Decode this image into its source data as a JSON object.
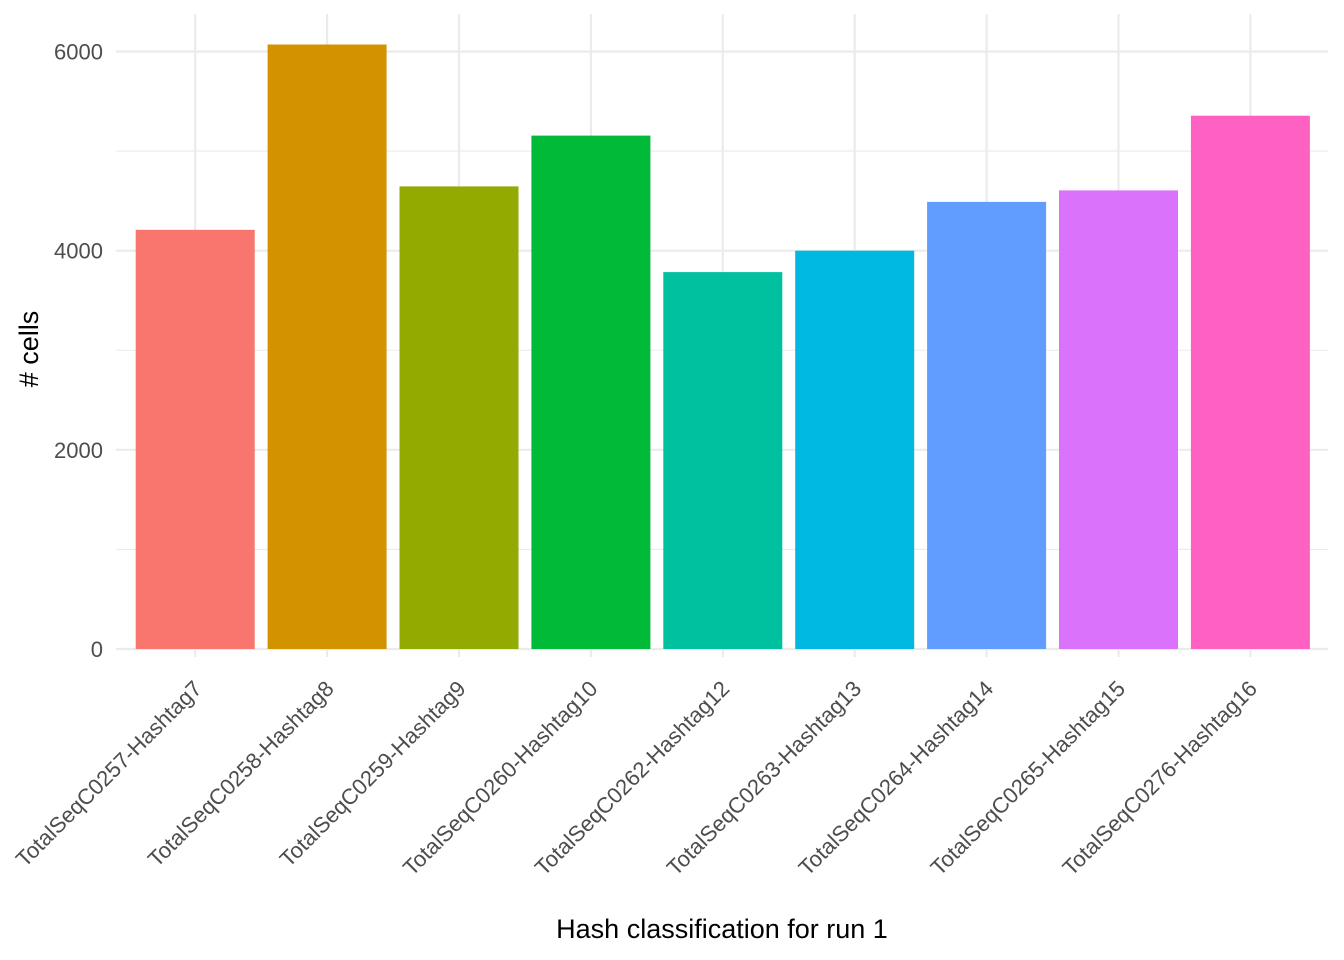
{
  "chart_data": {
    "type": "bar",
    "xlabel": "Hash classification for run 1",
    "ylabel": "# cells",
    "categories": [
      "TotalSeqC0257-Hashtag7",
      "TotalSeqC0258-Hashtag8",
      "TotalSeqC0259-Hashtag9",
      "TotalSeqC0260-Hashtag10",
      "TotalSeqC0262-Hashtag12",
      "TotalSeqC0263-Hashtag13",
      "TotalSeqC0264-Hashtag14",
      "TotalSeqC0265-Hashtag15",
      "TotalSeqC0276-Hashtag16"
    ],
    "values": [
      4210,
      6070,
      4645,
      5155,
      3785,
      4000,
      4490,
      4605,
      5355
    ],
    "colors": [
      "#F8766D",
      "#D39200",
      "#93AA00",
      "#00BA38",
      "#00C19F",
      "#00B9E3",
      "#619CFF",
      "#DB72FB",
      "#FF61C3"
    ],
    "ylim": [
      0,
      6300
    ],
    "yticks": [
      0,
      2000,
      4000,
      6000
    ],
    "grid": true,
    "legend": "none"
  }
}
